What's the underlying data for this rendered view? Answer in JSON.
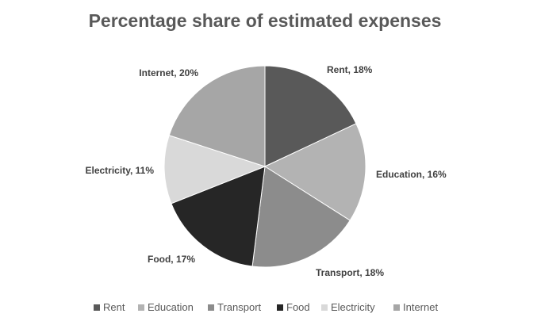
{
  "chart_data": {
    "type": "pie",
    "title": "Percentage share of estimated expenses",
    "categories": [
      "Rent",
      "Education",
      "Transport",
      "Food",
      "Electricity",
      "Internet"
    ],
    "values": [
      18,
      16,
      18,
      17,
      11,
      20
    ],
    "unit": "%",
    "data_labels": [
      "Rent, 18%",
      "Education, 16%",
      "Transport, 18%",
      "Food, 17%",
      "Electricity, 11%",
      "Internet, 20%"
    ],
    "colors": [
      "#595959",
      "#b3b3b3",
      "#8c8c8c",
      "#262626",
      "#d9d9d9",
      "#a6a6a6"
    ],
    "legend_position": "bottom",
    "start_angle": "12 o'clock, clockwise"
  }
}
